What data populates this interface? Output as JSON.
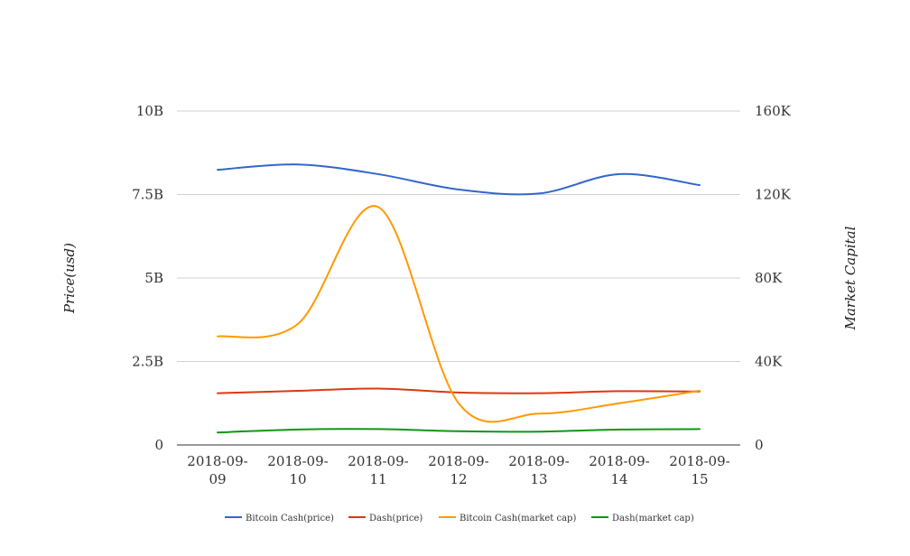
{
  "chart_data": {
    "type": "line",
    "title": "",
    "x": [
      "2018-09-09",
      "2018-09-10",
      "2018-09-11",
      "2018-09-12",
      "2018-09-13",
      "2018-09-14",
      "2018-09-15"
    ],
    "x_tick_labels": [
      [
        "2018-09-",
        "09"
      ],
      [
        "2018-09-",
        "10"
      ],
      [
        "2018-09-",
        "11"
      ],
      [
        "2018-09-",
        "12"
      ],
      [
        "2018-09-",
        "13"
      ],
      [
        "2018-09-",
        "14"
      ],
      [
        "2018-09-",
        "15"
      ]
    ],
    "ylabel_left": "Price(usd)",
    "ylabel_right": "Market Capital",
    "ylim_left": [
      0,
      10000000000
    ],
    "ylim_right": [
      0,
      160000
    ],
    "y_ticks_left": [
      {
        "value": 0,
        "label": "0"
      },
      {
        "value": 2500000000,
        "label": "2.5B"
      },
      {
        "value": 5000000000,
        "label": "5B"
      },
      {
        "value": 7500000000,
        "label": "7.5B"
      },
      {
        "value": 10000000000,
        "label": "10B"
      }
    ],
    "y_ticks_right": [
      {
        "value": 0,
        "label": "0"
      },
      {
        "value": 40000,
        "label": "40K"
      },
      {
        "value": 80000,
        "label": "80K"
      },
      {
        "value": 120000,
        "label": "120K"
      },
      {
        "value": 160000,
        "label": "160K"
      }
    ],
    "grid": true,
    "legend_position": "bottom",
    "series": [
      {
        "name": "Bitcoin Cash(price)",
        "axis": "left",
        "color": "#3366cc",
        "values": [
          8240000000,
          8400000000,
          8110000000,
          7650000000,
          7530000000,
          8110000000,
          7780000000
        ]
      },
      {
        "name": "Dash(price)",
        "axis": "left",
        "color": "#dc3912",
        "values": [
          1550000000,
          1620000000,
          1690000000,
          1570000000,
          1550000000,
          1610000000,
          1600000000
        ]
      },
      {
        "name": "Bitcoin Cash(market cap)",
        "axis": "right",
        "color": "#ff9900",
        "values": [
          52000,
          58000,
          114000,
          20000,
          15000,
          20000,
          26000
        ]
      },
      {
        "name": "Dash(market cap)",
        "axis": "right",
        "color": "#109618",
        "values": [
          6000,
          7400,
          7600,
          6600,
          6400,
          7400,
          7600
        ]
      }
    ]
  }
}
